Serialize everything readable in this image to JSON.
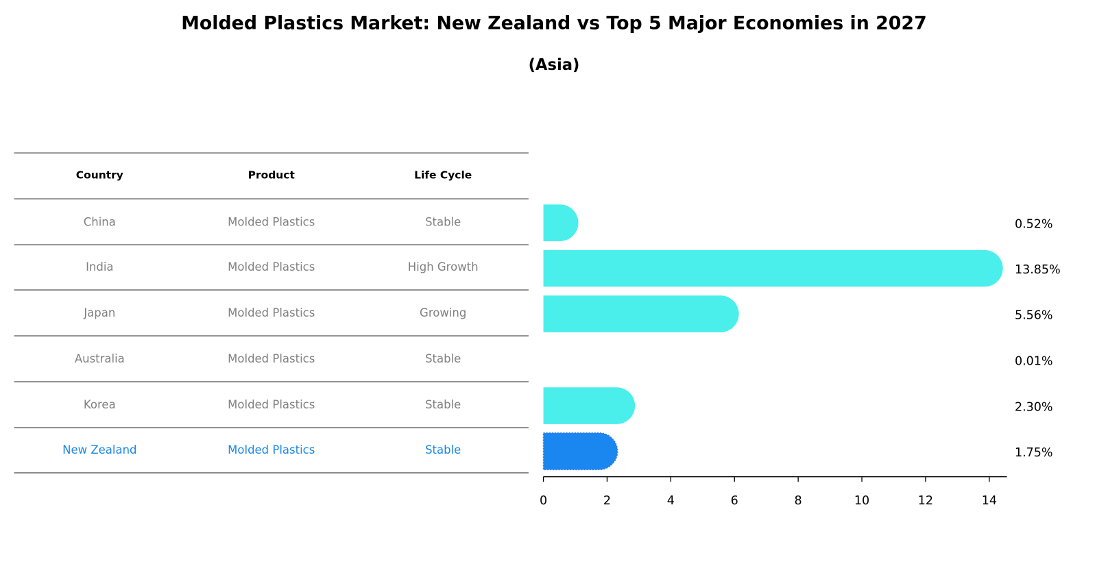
{
  "title": "Molded Plastics Market: New Zealand vs Top 5 Major Economies in 2027",
  "subtitle": "(Asia)",
  "table": {
    "headers": [
      "Country",
      "Product",
      "Life Cycle"
    ],
    "rows": [
      [
        "China",
        "Molded Plastics",
        "Stable"
      ],
      [
        "India",
        "Molded Plastics",
        "High Growth"
      ],
      [
        "Japan",
        "Molded Plastics",
        "Growing"
      ],
      [
        "Australia",
        "Molded Plastics",
        "Stable"
      ],
      [
        "Korea",
        "Molded Plastics",
        "Stable"
      ],
      [
        "New Zealand",
        "Molded Plastics",
        "Stable"
      ]
    ]
  },
  "chart_data": {
    "type": "bar",
    "orientation": "horizontal",
    "categories": [
      "China",
      "India",
      "Japan",
      "Australia",
      "Korea",
      "New Zealand"
    ],
    "values": [
      0.52,
      13.85,
      5.56,
      0.01,
      2.3,
      1.75
    ],
    "value_labels": [
      "0.52%",
      "13.85%",
      "5.56%",
      "0.01%",
      "2.30%",
      "1.75%"
    ],
    "highlight": "New Zealand",
    "xlim": [
      0,
      14.5
    ],
    "xticks": [
      0,
      2,
      4,
      6,
      8,
      10,
      12,
      14
    ],
    "colors": {
      "default": "#4aeeea",
      "highlight": "#1a86f0"
    }
  }
}
